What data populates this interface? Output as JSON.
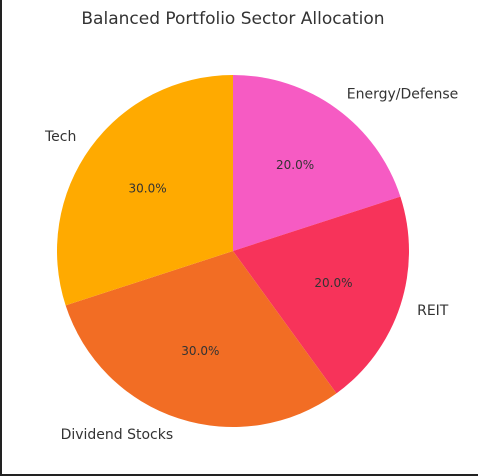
{
  "chart_data": {
    "type": "pie",
    "title": "Balanced Portfolio Sector Allocation",
    "categories": [
      "Energy/Defense",
      "REIT",
      "Dividend Stocks",
      "Tech"
    ],
    "values": [
      20.0,
      20.0,
      30.0,
      30.0
    ],
    "percent_labels": [
      "20.0%",
      "20.0%",
      "30.0%",
      "30.0%"
    ],
    "colors": [
      "#F65BC3",
      "#F7335A",
      "#F26D24",
      "#FFAA00"
    ],
    "start_angle_deg": 90,
    "direction": "clockwise",
    "legend": "none"
  }
}
